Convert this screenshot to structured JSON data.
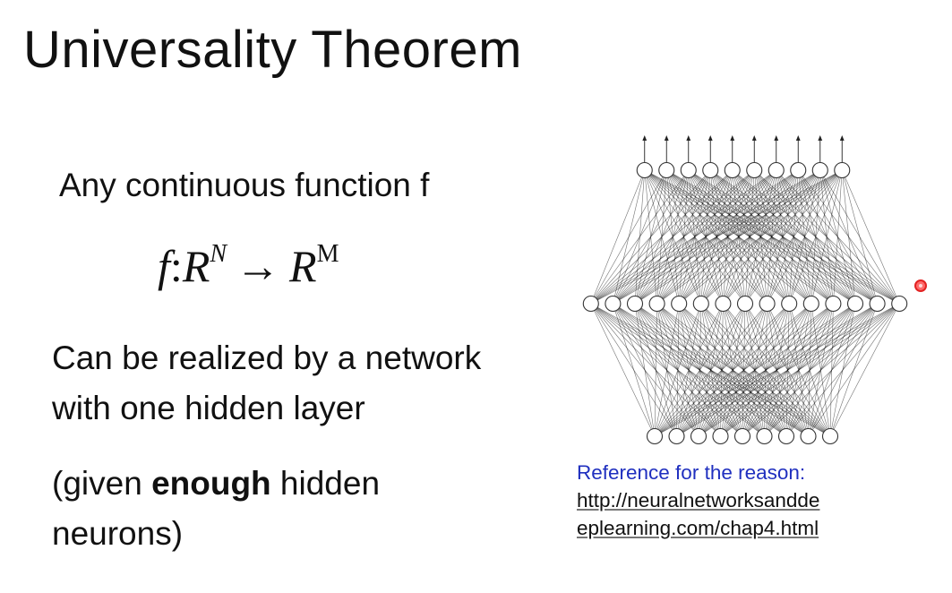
{
  "slide": {
    "title": "Universality Theorem",
    "line1": "Any continuous function f",
    "formula": {
      "lhs": "f",
      "colon": ":",
      "domain_base": "R",
      "domain_sup": "N",
      "arrow": "→",
      "codomain_base": "R",
      "codomain_sup": "M"
    },
    "realized_line1": "Can be realized by a network",
    "realized_line2": "with one hidden layer",
    "given_pre": "(given ",
    "given_bold": "enough",
    "given_post": " hidden",
    "given_line2": "neurons)"
  },
  "figure": {
    "network": {
      "input_nodes": 9,
      "hidden_nodes": 15,
      "output_nodes": 10,
      "output_arrows": 10
    }
  },
  "reference": {
    "heading": "Reference for the reason:",
    "url_line1": "http://neuralnetworksandde",
    "url_line2": "eplearning.com/chap4.html"
  },
  "colors": {
    "text": "#111111",
    "reference_heading": "#1f2fbf",
    "pointer": "#e22222"
  }
}
